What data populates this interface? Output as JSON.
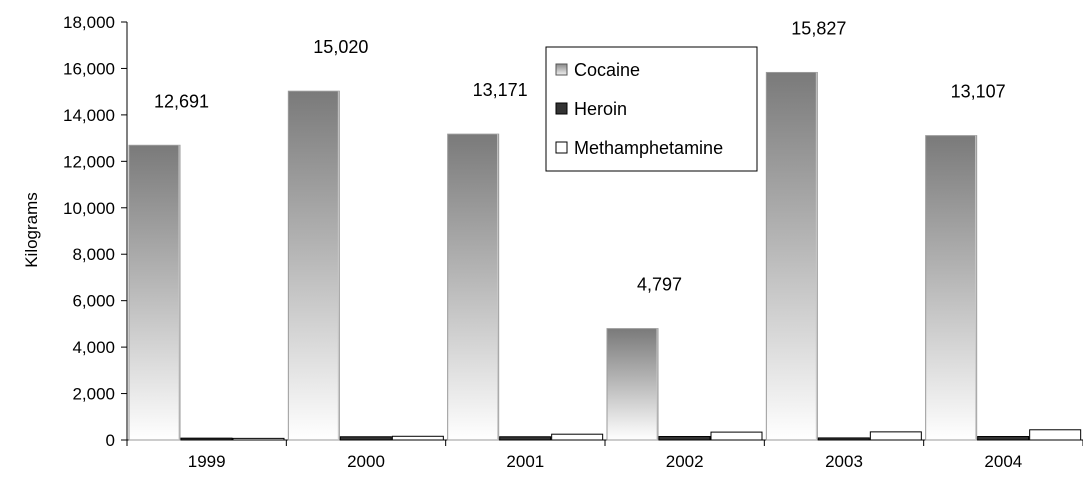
{
  "chart_data": {
    "type": "bar",
    "title": "",
    "xlabel": "",
    "ylabel": "Kilograms",
    "ylim": [
      0,
      18000
    ],
    "ytick_step": 2000,
    "categories": [
      "1999",
      "2000",
      "2001",
      "2002",
      "2003",
      "2004"
    ],
    "series": [
      {
        "name": "Cocaine",
        "values": [
          12691,
          15020,
          13171,
          4797,
          15827,
          13107
        ],
        "value_labels": [
          "12,691",
          "15,020",
          "13,171",
          "4,797",
          "15,827",
          "13,107"
        ],
        "color": "#8a8a8a"
      },
      {
        "name": "Heroin",
        "values": [
          80,
          140,
          140,
          150,
          90,
          150
        ],
        "color": "#333333"
      },
      {
        "name": "Methamphetamine",
        "values": [
          70,
          160,
          250,
          340,
          350,
          440
        ],
        "color": "#ffffff"
      }
    ],
    "grid": false,
    "legend_position": "top-center"
  }
}
